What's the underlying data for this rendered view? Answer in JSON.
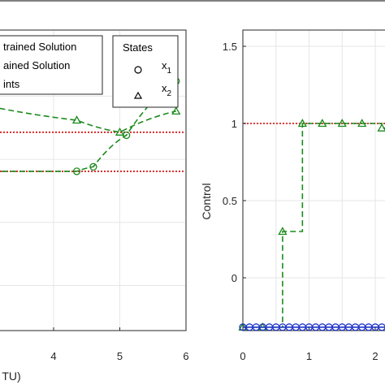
{
  "chart_data": [
    {
      "type": "line",
      "x_ticks": [
        "4",
        "5",
        "6"
      ],
      "xlabel": "TU)",
      "legend_main": [
        "trained Solution",
        "ained Solution",
        "ints"
      ],
      "legend_states": {
        "title": "States",
        "entries": [
          "x1",
          "x2"
        ]
      },
      "xlim": [
        2.0,
        6.0
      ],
      "ylim": [
        0.0,
        1.0
      ],
      "constraint_lines": [
        0.66,
        0.53
      ],
      "series": [
        {
          "marker": "circle",
          "color": "#1a8a1a",
          "x": [
            2.0,
            4.35,
            4.6,
            5.1,
            5.85
          ],
          "y": [
            0.53,
            0.53,
            0.545,
            0.65,
            0.83
          ]
        },
        {
          "marker": "triangle",
          "color": "#1a8a1a",
          "x": [
            2.0,
            4.35,
            5.0,
            5.85
          ],
          "y": [
            0.8,
            0.7,
            0.66,
            0.73
          ]
        }
      ]
    },
    {
      "type": "line",
      "ylabel": "Control",
      "y_ticks": [
        "0",
        "0.5",
        "1",
        "1.5"
      ],
      "x_ticks": [
        "0",
        "1",
        "2"
      ],
      "xlim": [
        0,
        2.25
      ],
      "ylim": [
        -0.45,
        1.6
      ],
      "constraint_lines": [
        1.0
      ],
      "series": [
        {
          "marker": "triangle",
          "color": "#1a8a1a",
          "x": [
            0,
            0.3,
            0.6,
            0.9,
            1.2,
            1.5,
            1.8,
            2.1
          ],
          "y": [
            -0.32,
            -0.32,
            0.3,
            1.0,
            1.0,
            1.0,
            1.0,
            0.97
          ]
        },
        {
          "marker": "circle",
          "color": "#1f35c8",
          "x": [
            0,
            0.1,
            0.2,
            0.3,
            0.4,
            0.5,
            0.6,
            0.7,
            0.8,
            0.9,
            1.0,
            1.1,
            1.2,
            1.3,
            1.4,
            1.5,
            1.6,
            1.7,
            1.8,
            1.9,
            2.0,
            2.1,
            2.2
          ],
          "y": [
            -0.32,
            -0.32,
            -0.32,
            -0.32,
            -0.32,
            -0.32,
            -0.32,
            -0.32,
            -0.32,
            -0.32,
            -0.32,
            -0.32,
            -0.32,
            -0.32,
            -0.32,
            -0.32,
            -0.32,
            -0.32,
            -0.32,
            -0.32,
            -0.32,
            -0.32,
            -0.32
          ]
        }
      ]
    }
  ]
}
